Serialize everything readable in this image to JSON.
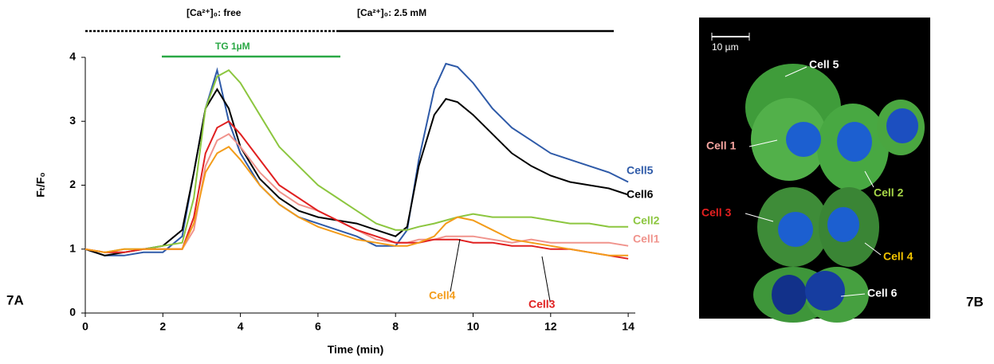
{
  "chart_data": {
    "type": "line",
    "panel_label": "7A",
    "annotations": {
      "ca_free": "[Ca²⁺]₀: free",
      "ca_high": "[Ca²⁺]₀: 2.5 mM",
      "tg": "TG 1µM"
    },
    "x_label": "Time (min)",
    "y_label": "Fₜ/F₀",
    "x": [
      0,
      0.5,
      1,
      1.5,
      2,
      2.5,
      2.8,
      3.1,
      3.4,
      3.7,
      4,
      4.5,
      5,
      5.5,
      6,
      6.5,
      7,
      7.5,
      8,
      8.3,
      8.6,
      9,
      9.3,
      9.6,
      10,
      10.5,
      11,
      11.5,
      12,
      12.5,
      13,
      13.5,
      14
    ],
    "xlim": [
      0,
      14.2
    ],
    "xticks": [
      0,
      2,
      4,
      6,
      8,
      10,
      12,
      14
    ],
    "ylim": [
      0,
      4
    ],
    "yticks": [
      0,
      1,
      2,
      3,
      4
    ],
    "series": [
      {
        "name": "Cell5",
        "color": "#2e5aa8",
        "values": [
          1,
          0.9,
          0.9,
          0.95,
          0.95,
          1.2,
          2.2,
          3.2,
          3.8,
          3.0,
          2.5,
          2.0,
          1.7,
          1.5,
          1.4,
          1.3,
          1.2,
          1.05,
          1.05,
          1.3,
          2.4,
          3.5,
          3.9,
          3.85,
          3.6,
          3.2,
          2.9,
          2.7,
          2.5,
          2.4,
          2.3,
          2.2,
          2.05
        ]
      },
      {
        "name": "Cell6",
        "color": "#000000",
        "values": [
          1,
          0.9,
          0.95,
          1.0,
          1.05,
          1.3,
          2.2,
          3.2,
          3.5,
          3.2,
          2.6,
          2.1,
          1.8,
          1.6,
          1.5,
          1.45,
          1.4,
          1.3,
          1.2,
          1.35,
          2.3,
          3.1,
          3.35,
          3.3,
          3.1,
          2.8,
          2.5,
          2.3,
          2.15,
          2.05,
          2.0,
          1.95,
          1.85
        ]
      },
      {
        "name": "Cell2",
        "color": "#8cc63f",
        "values": [
          1,
          0.95,
          1.0,
          1.0,
          1.05,
          1.1,
          1.8,
          3.2,
          3.7,
          3.8,
          3.6,
          3.1,
          2.6,
          2.3,
          2.0,
          1.8,
          1.6,
          1.4,
          1.3,
          1.3,
          1.35,
          1.4,
          1.45,
          1.5,
          1.55,
          1.5,
          1.5,
          1.5,
          1.45,
          1.4,
          1.4,
          1.35,
          1.35
        ]
      },
      {
        "name": "Cell1",
        "color": "#f0938c",
        "values": [
          1,
          0.95,
          0.95,
          1.0,
          1.0,
          1.0,
          1.3,
          2.3,
          2.7,
          2.8,
          2.6,
          2.2,
          1.9,
          1.7,
          1.6,
          1.45,
          1.3,
          1.15,
          1.1,
          1.1,
          1.15,
          1.15,
          1.2,
          1.2,
          1.2,
          1.15,
          1.1,
          1.15,
          1.1,
          1.1,
          1.1,
          1.1,
          1.05
        ]
      },
      {
        "name": "Cell3",
        "color": "#e02020",
        "values": [
          1,
          0.95,
          0.95,
          1.0,
          1.0,
          1.0,
          1.5,
          2.5,
          2.9,
          3.0,
          2.8,
          2.4,
          2.0,
          1.8,
          1.6,
          1.45,
          1.3,
          1.2,
          1.1,
          1.1,
          1.1,
          1.15,
          1.15,
          1.15,
          1.1,
          1.1,
          1.05,
          1.05,
          1.0,
          1.0,
          0.95,
          0.9,
          0.85
        ]
      },
      {
        "name": "Cell4",
        "color": "#f39c1a",
        "values": [
          1,
          0.95,
          1.0,
          1.0,
          1.0,
          1.0,
          1.4,
          2.2,
          2.5,
          2.6,
          2.4,
          2.0,
          1.7,
          1.5,
          1.35,
          1.25,
          1.15,
          1.1,
          1.05,
          1.05,
          1.1,
          1.2,
          1.4,
          1.5,
          1.45,
          1.3,
          1.15,
          1.1,
          1.05,
          1.0,
          0.95,
          0.9,
          0.9
        ]
      }
    ]
  },
  "image": {
    "panel_label": "7B",
    "scale_bar": "10 µm",
    "labels": [
      "Cell 5",
      "Cell 1",
      "Cell 2",
      "Cell 3",
      "Cell 4",
      "Cell 6"
    ]
  }
}
